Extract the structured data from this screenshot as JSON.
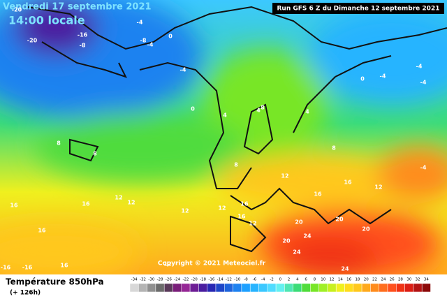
{
  "header": {
    "date": "Vendredi 17 septembre 2021",
    "time": "14:00 locale",
    "run": "Run GFS 6 Z du Dimanche 12 septembre 2021"
  },
  "footer": {
    "title": "Température 850hPa",
    "lead": "(+ 126h)",
    "copyright": "Copyright © 2021 Meteociel.fr"
  },
  "scale": {
    "values": [
      -34,
      -32,
      -30,
      -28,
      -26,
      -24,
      -22,
      -20,
      -18,
      -16,
      -14,
      -12,
      -10,
      -8,
      -6,
      -4,
      -2,
      0,
      2,
      4,
      6,
      8,
      10,
      12,
      14,
      16,
      18,
      20,
      22,
      24,
      26,
      28,
      30,
      32,
      34
    ],
    "colors": [
      "#d8d8d8",
      "#b4b4b4",
      "#909090",
      "#6c6c6c",
      "#5a3a5a",
      "#7a1f7a",
      "#962896",
      "#6e1e96",
      "#4b1ea0",
      "#2828b4",
      "#1e46c8",
      "#1e64dc",
      "#1e82f0",
      "#1ea0ff",
      "#28b4ff",
      "#3cc8ff",
      "#50dcff",
      "#64f0f0",
      "#50e6b4",
      "#3cdc78",
      "#50dc3c",
      "#78e628",
      "#a0f028",
      "#c8f01e",
      "#f0f01e",
      "#ffdc1e",
      "#ffc81e",
      "#ffaa1e",
      "#ff8c1e",
      "#ff6e1e",
      "#ff501e",
      "#f03214",
      "#dc1e14",
      "#b41414",
      "#8c0a0a"
    ]
  },
  "map_labels": [
    "-20",
    "-16",
    "-20",
    "-4",
    "-8",
    "-4",
    "-8",
    "0",
    "-4",
    "0",
    "4",
    "4",
    "0",
    "8",
    "4",
    "8",
    "8",
    "8",
    "8",
    "12",
    "12",
    "16",
    "16",
    "12",
    "12",
    "16",
    "16",
    "12",
    "16",
    "12",
    "16",
    "20",
    "20",
    "24",
    "24",
    "20",
    "24",
    "20",
    "-4",
    "-4",
    "-4",
    "-4",
    "16",
    "12",
    "-16",
    "-16",
    "16",
    "12"
  ]
}
